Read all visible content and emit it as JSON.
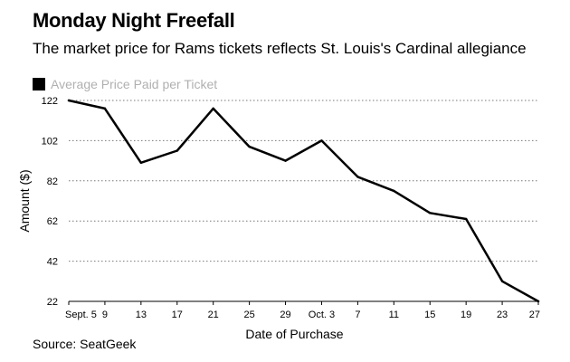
{
  "header": {
    "title": "Monday Night Freefall",
    "subtitle": "The market price for Rams tickets reflects St. Louis's Cardinal allegiance"
  },
  "legend": {
    "label": "Average Price Paid per Ticket",
    "swatch_color": "#000000"
  },
  "source": "Source: SeatGeek",
  "chart_data": {
    "type": "line",
    "title": "Monday Night Freefall",
    "subtitle": "The market price for Rams tickets reflects St. Louis's Cardinal allegiance",
    "xlabel": "Date of Purchase",
    "ylabel": "Amount ($)",
    "categories": [
      "Sept. 5",
      "9",
      "13",
      "17",
      "21",
      "25",
      "29",
      "Oct. 3",
      "7",
      "11",
      "15",
      "19",
      "23",
      "27"
    ],
    "series": [
      {
        "name": "Average Price Paid per Ticket",
        "values": [
          122,
          118,
          91,
          97,
          118,
          99,
          92,
          102,
          84,
          77,
          66,
          63,
          32,
          22
        ]
      }
    ],
    "yticks": [
      22,
      42,
      62,
      82,
      102,
      122
    ],
    "ylim": [
      22,
      122
    ],
    "grid": true,
    "legend_position": "top-left"
  }
}
